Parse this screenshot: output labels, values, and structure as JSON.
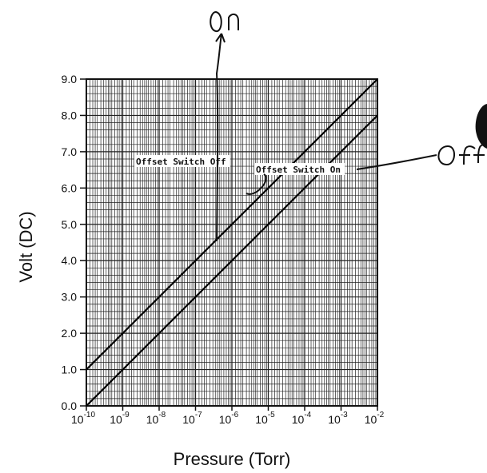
{
  "chart_data": {
    "type": "line",
    "title": "",
    "xlabel": "Pressure (Torr)",
    "ylabel": "Volt (DC)",
    "xscale": "log",
    "xlim_exponents": [
      -10,
      -2
    ],
    "ylim": [
      0,
      9
    ],
    "grid": true,
    "x_ticks": [
      {
        "base": "10",
        "exp": "-10"
      },
      {
        "base": "10",
        "exp": "-9"
      },
      {
        "base": "10",
        "exp": "-8"
      },
      {
        "base": "10",
        "exp": "-7"
      },
      {
        "base": "10",
        "exp": "-6"
      },
      {
        "base": "10",
        "exp": "-5"
      },
      {
        "base": "10",
        "exp": "-4"
      },
      {
        "base": "10",
        "exp": "-3"
      },
      {
        "base": "10",
        "exp": "-2"
      }
    ],
    "y_ticks": [
      "0.0",
      "1.0",
      "2.0",
      "3.0",
      "4.0",
      "5.0",
      "6.0",
      "7.0",
      "8.0",
      "9.0"
    ],
    "series": [
      {
        "x_exp": [
          -10,
          -2
        ],
        "y": [
          1.0,
          9.0
        ]
      },
      {
        "x_exp": [
          -10,
          -2
        ],
        "y": [
          0.0,
          8.0
        ]
      }
    ],
    "annotations": [
      {
        "text": "Offset Switch Off",
        "series_index": 0
      },
      {
        "text": "Offset Switch On",
        "series_index": 1
      }
    ],
    "handwritten": [
      {
        "text": "On"
      },
      {
        "text": "Off"
      }
    ]
  },
  "colors": {
    "ink": "#111111",
    "background": "#ffffff"
  }
}
